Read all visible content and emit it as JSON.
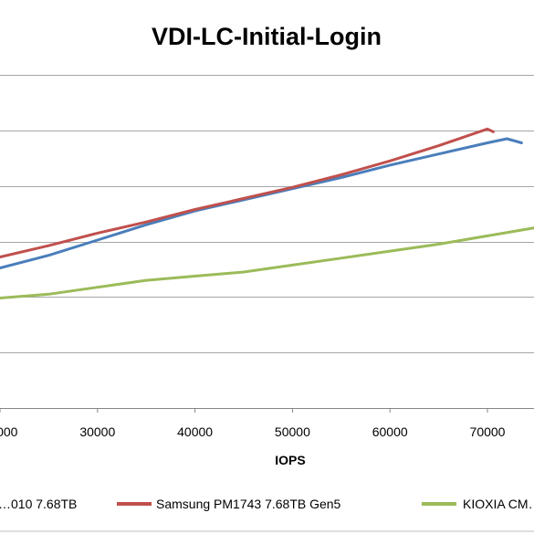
{
  "chart_data": {
    "type": "line",
    "title": "VDI-LC-Initial-Login",
    "xlabel": "IOPS",
    "ylabel": "",
    "x_ticks": [
      30000,
      40000,
      50000,
      60000,
      70000
    ],
    "xlim": [
      19500,
      75000
    ],
    "ylim": [
      0,
      1.2
    ],
    "grid": true,
    "legend_position": "bottom",
    "series": [
      {
        "name": "…010 7.68TB",
        "color": "#4a7ebb",
        "points": [
          [
            19500,
            0.5
          ],
          [
            25000,
            0.55
          ],
          [
            30000,
            0.605
          ],
          [
            35000,
            0.66
          ],
          [
            40000,
            0.71
          ],
          [
            45000,
            0.75
          ],
          [
            50000,
            0.79
          ],
          [
            55000,
            0.83
          ],
          [
            60000,
            0.875
          ],
          [
            65000,
            0.915
          ],
          [
            70000,
            0.955
          ],
          [
            72000,
            0.97
          ],
          [
            73500,
            0.955
          ]
        ]
      },
      {
        "name": "Samsung PM1743 7.68TB Gen5",
        "color": "#c0504d",
        "points": [
          [
            19500,
            0.54
          ],
          [
            25000,
            0.585
          ],
          [
            30000,
            0.63
          ],
          [
            35000,
            0.67
          ],
          [
            40000,
            0.715
          ],
          [
            45000,
            0.755
          ],
          [
            50000,
            0.795
          ],
          [
            55000,
            0.84
          ],
          [
            60000,
            0.89
          ],
          [
            65000,
            0.945
          ],
          [
            70000,
            1.005
          ],
          [
            70600,
            0.995
          ]
        ]
      },
      {
        "name": "KIOXIA CM…",
        "color": "#9bbb59",
        "points": [
          [
            19500,
            0.395
          ],
          [
            25000,
            0.41
          ],
          [
            30000,
            0.435
          ],
          [
            35000,
            0.46
          ],
          [
            40000,
            0.475
          ],
          [
            45000,
            0.49
          ],
          [
            50000,
            0.515
          ],
          [
            55000,
            0.54
          ],
          [
            60000,
            0.565
          ],
          [
            65000,
            0.59
          ],
          [
            70000,
            0.62
          ],
          [
            75000,
            0.65
          ]
        ]
      }
    ]
  }
}
